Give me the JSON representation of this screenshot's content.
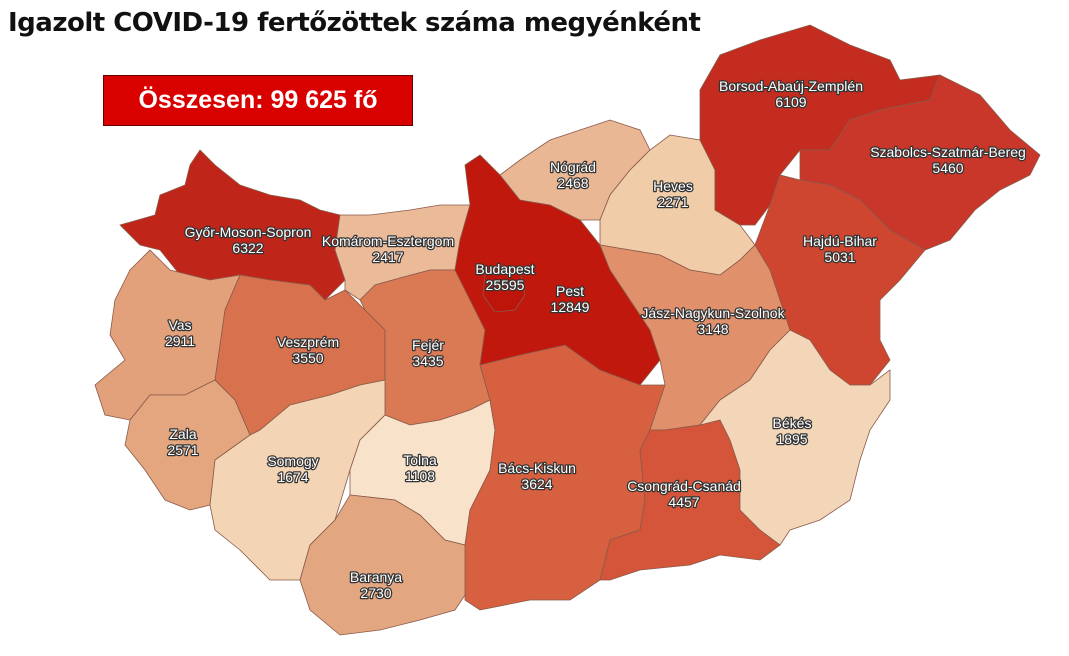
{
  "title": "Igazolt COVID-19 fertőzöttek száma megyénként",
  "total_label": "Összesen: 99 625 fő",
  "counties": [
    {
      "name": "Győr-Moson-Sopron",
      "value": "6322",
      "color": "#c0251a"
    },
    {
      "name": "Vas",
      "value": "2911",
      "color": "#e2a17b"
    },
    {
      "name": "Zala",
      "value": "2571",
      "color": "#e3a67f"
    },
    {
      "name": "Veszprém",
      "value": "3550",
      "color": "#d8714d"
    },
    {
      "name": "Komárom-Esztergom",
      "value": "2417",
      "color": "#ebba98"
    },
    {
      "name": "Fejér",
      "value": "3435",
      "color": "#da7a55"
    },
    {
      "name": "Somogy",
      "value": "1674",
      "color": "#f3d4b4"
    },
    {
      "name": "Tolna",
      "value": "1108",
      "color": "#f8e3ca"
    },
    {
      "name": "Baranya",
      "value": "2730",
      "color": "#e2a680"
    },
    {
      "name": "Bács-Kiskun",
      "value": "3624",
      "color": "#d6603f"
    },
    {
      "name": "Pest",
      "value": "12849",
      "color": "#c0180c"
    },
    {
      "name": "Budapest",
      "value": "25595",
      "color": "#bd1509"
    },
    {
      "name": "Nógrád",
      "value": "2468",
      "color": "#e9b794"
    },
    {
      "name": "Heves",
      "value": "2271",
      "color": "#f0cca8"
    },
    {
      "name": "Borsod-Abaúj-Zemplén",
      "value": "6109",
      "color": "#c42c1f"
    },
    {
      "name": "Szabolcs-Szatmár-Bereg",
      "value": "5460",
      "color": "#c8372a"
    },
    {
      "name": "Hajdú-Bihar",
      "value": "5031",
      "color": "#cf4630"
    },
    {
      "name": "Jász-Nagykun-Szolnok",
      "value": "3148",
      "color": "#e0906a"
    },
    {
      "name": "Csongrád-Csanád",
      "value": "4457",
      "color": "#d4553a"
    },
    {
      "name": "Békés",
      "value": "1895",
      "color": "#f3d6b8"
    }
  ]
}
